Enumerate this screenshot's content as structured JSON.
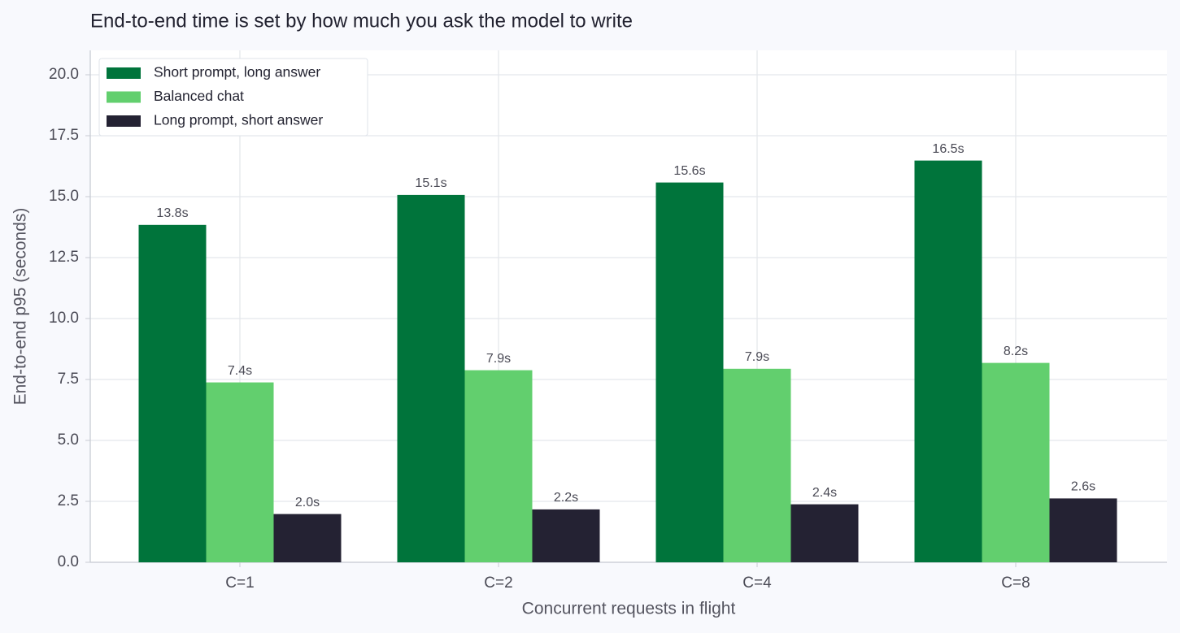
{
  "chart_data": {
    "type": "bar",
    "title": "End-to-end time is set by how much you ask the model to write",
    "x_label": "Concurrent requests in flight",
    "y_label": "End-to-end p95 (seconds)",
    "categories": [
      "C=1",
      "C=2",
      "C=4",
      "C=8"
    ],
    "series": [
      {
        "name": "Short prompt, long answer",
        "color": "#00743b",
        "values": [
          13.84,
          15.07,
          15.58,
          16.48
        ],
        "value_labels": [
          "13.8s",
          "15.1s",
          "15.6s",
          "16.5s"
        ]
      },
      {
        "name": "Balanced chat",
        "color": "#62cf6e",
        "values": [
          7.38,
          7.88,
          7.94,
          8.18
        ],
        "value_labels": [
          "7.4s",
          "7.9s",
          "7.9s",
          "8.2s"
        ]
      },
      {
        "name": "Long prompt, short answer",
        "color": "#242233",
        "values": [
          1.98,
          2.17,
          2.38,
          2.62
        ],
        "value_labels": [
          "2.0s",
          "2.2s",
          "2.4s",
          "2.6s"
        ]
      }
    ],
    "ylim": [
      0,
      21
    ],
    "yticks": [
      {
        "value": 0,
        "label": "0.0"
      },
      2.5,
      {
        "value": 5,
        "label": "5.0"
      },
      7.5,
      {
        "value": 10,
        "label": "10.0"
      },
      12.5,
      {
        "value": 15,
        "label": "15.0"
      },
      17.5,
      {
        "value": 20,
        "label": "20.0"
      }
    ],
    "grid": true,
    "legend": "upper-left"
  }
}
